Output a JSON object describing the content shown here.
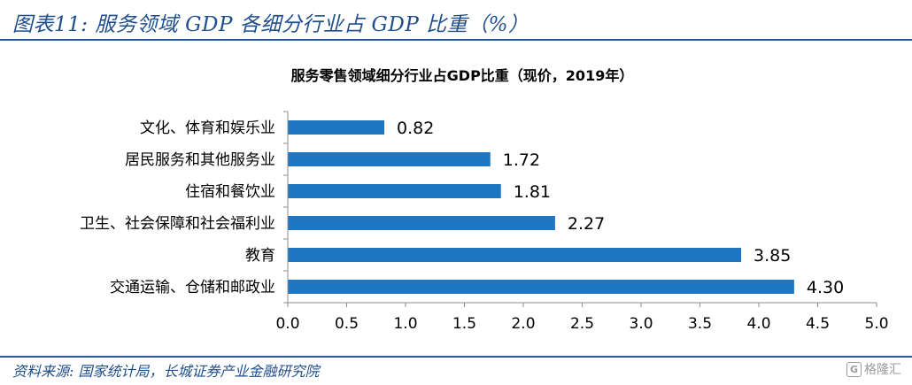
{
  "figure_title": "图表11: 服务领域 GDP 各细分行业占 GDP 比重（%）",
  "source_note": "资料来源: 国家统计局，长城证券产业金融研究院",
  "watermark": "格隆汇",
  "chart_data": {
    "type": "bar",
    "orientation": "horizontal",
    "title": "服务零售领域细分行业占GDP比重（现价，2019年）",
    "categories": [
      "文化、体育和娱乐业",
      "居民服务和其他服务业",
      "住宿和餐饮业",
      "卫生、社会保障和社会福利业",
      "教育",
      "交通运输、仓储和邮政业"
    ],
    "values": [
      0.82,
      1.72,
      1.81,
      2.27,
      3.85,
      4.3
    ],
    "value_labels": [
      "0.82",
      "1.72",
      "1.81",
      "2.27",
      "3.85",
      "4.30"
    ],
    "xlim": [
      0,
      5
    ],
    "xticks": [
      "0.0",
      "0.5",
      "1.0",
      "1.5",
      "2.0",
      "2.5",
      "3.0",
      "3.5",
      "4.0",
      "4.5",
      "5.0"
    ],
    "xlabel": "",
    "ylabel": "",
    "grid": false,
    "bar_color": "#1f77c4"
  }
}
